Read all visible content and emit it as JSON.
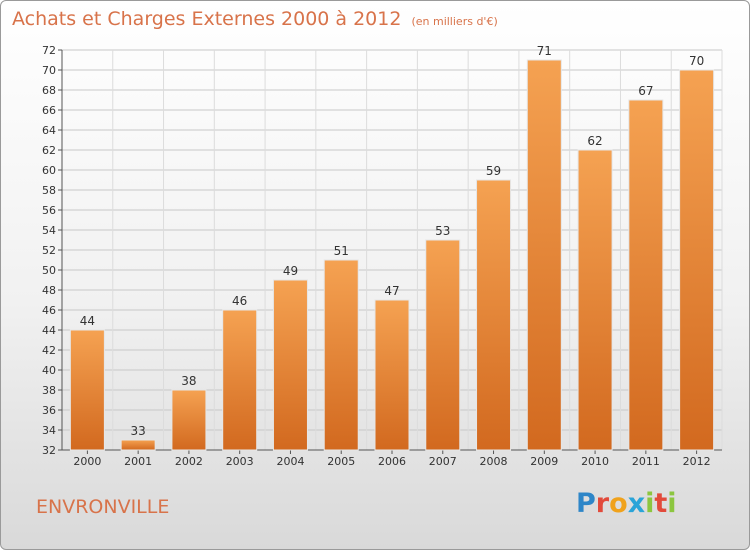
{
  "header": {
    "title": "Achats et Charges Externes 2000 à 2012",
    "unit": "(en milliers d'€)"
  },
  "footer": {
    "commune": "ENVRONVILLE",
    "logo_letters": [
      "P",
      "r",
      "o",
      "x",
      "i",
      "t",
      "i"
    ],
    "logo_colors": [
      "#2e86c8",
      "#e24a3b",
      "#f0a21c",
      "#2aa4d8",
      "#8cc63f",
      "#e24a3b",
      "#8cc63f"
    ]
  },
  "colors": {
    "bar_top": "#f5a252",
    "bar_bottom": "#d2691f",
    "title": "#d8734a",
    "grid": "#c8c8c8",
    "text": "#333333"
  },
  "chart_data": {
    "type": "bar",
    "title": "Achats et Charges Externes 2000 à 2012",
    "subtitle": "(en milliers d'€)",
    "categories": [
      "2000",
      "2001",
      "2002",
      "2003",
      "2004",
      "2005",
      "2006",
      "2007",
      "2008",
      "2009",
      "2010",
      "2011",
      "2012"
    ],
    "values": [
      44,
      33,
      38,
      46,
      49,
      51,
      47,
      53,
      59,
      71,
      62,
      67,
      70
    ],
    "ylim": [
      32,
      72
    ],
    "yticks": [
      32,
      34,
      36,
      38,
      40,
      42,
      44,
      46,
      48,
      50,
      52,
      54,
      56,
      58,
      60,
      62,
      64,
      66,
      68,
      70,
      72
    ],
    "grid": true,
    "xlabel": "",
    "ylabel": ""
  }
}
